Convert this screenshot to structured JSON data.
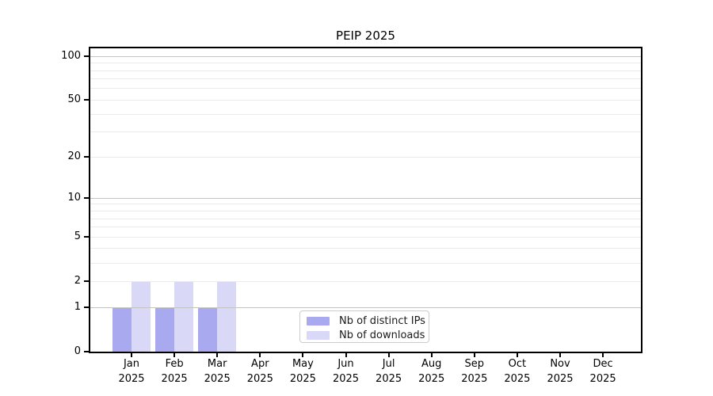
{
  "title": "PEIP 2025",
  "chart_data": {
    "type": "bar",
    "title": "PEIP 2025",
    "categories": [
      "Jan",
      "Feb",
      "Mar",
      "Apr",
      "May",
      "Jun",
      "Jul",
      "Aug",
      "Sep",
      "Oct",
      "Nov",
      "Dec"
    ],
    "category_year": "2025",
    "series": [
      {
        "name": "Nb of distinct IPs",
        "color": "#a9a9f0",
        "values": [
          1,
          1,
          1,
          0,
          0,
          0,
          0,
          0,
          0,
          0,
          0,
          0
        ]
      },
      {
        "name": "Nb of downloads",
        "color": "#d9d9f7",
        "values": [
          2,
          2,
          2,
          0,
          0,
          0,
          0,
          0,
          0,
          0,
          0,
          0
        ]
      }
    ],
    "xlabel": "",
    "ylabel": "",
    "yscale": "log1p",
    "ylim": [
      0,
      115
    ],
    "y_tick_labels": [
      0,
      1,
      2,
      5,
      10,
      20,
      50,
      100
    ],
    "y_major_gridlines": [
      1,
      10,
      100
    ],
    "y_minor_gridlines": [
      2,
      3,
      4,
      5,
      6,
      7,
      8,
      9,
      20,
      30,
      40,
      50,
      60,
      70,
      80,
      90
    ],
    "grid": true,
    "legend_position": "lower center inside plot",
    "colors": {
      "grid_major": "#c4c4c4",
      "grid_minor": "#ebebeb",
      "spine": "#000000",
      "text": "#000000",
      "legend_border": "#cccccc",
      "background": "#ffffff"
    }
  }
}
